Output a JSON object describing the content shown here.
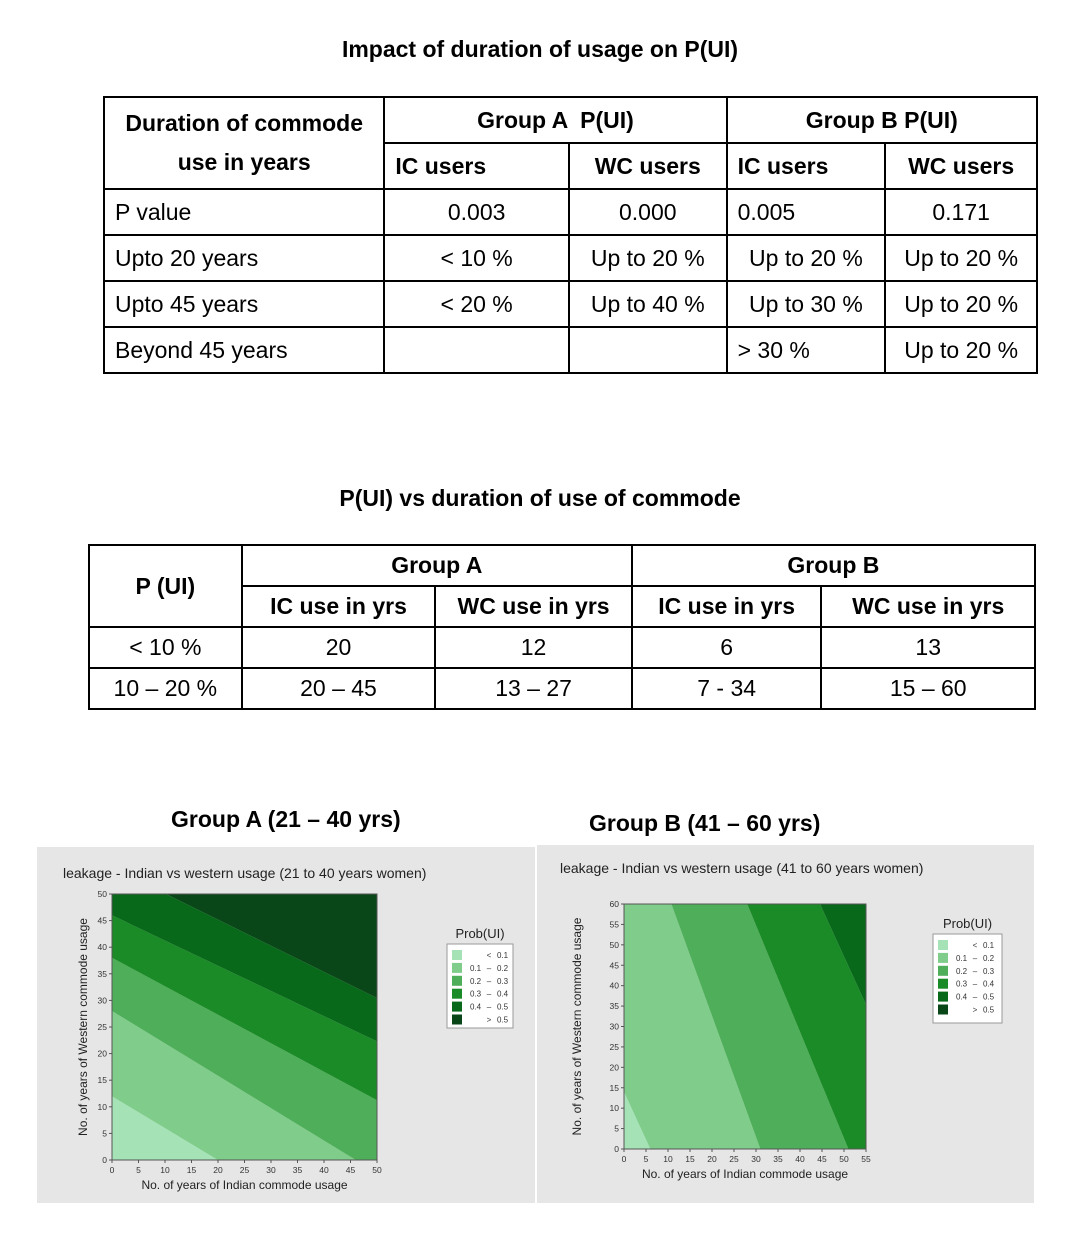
{
  "table1": {
    "title": "Impact of duration of usage on P(UI)",
    "corner_line1": "Duration of commode",
    "corner_line2": "use in years",
    "group_a": "Group A  P(UI)",
    "group_b": "Group B P(UI)",
    "sub_headers": [
      "IC users",
      "WC users",
      "IC users",
      "WC users"
    ],
    "rows": [
      {
        "label": "P value",
        "cells": [
          "0.003",
          "0.000",
          "0.005",
          "0.171"
        ]
      },
      {
        "label": "Upto 20 years",
        "cells": [
          "< 10 %",
          "Up to 20 %",
          "Up to 20 %",
          "Up to 20 %"
        ]
      },
      {
        "label": "Upto 45 years",
        "cells": [
          "< 20 %",
          "Up to 40 %",
          "Up to 30 %",
          "Up to 20 %"
        ]
      },
      {
        "label": "Beyond 45 years",
        "cells": [
          "",
          "",
          "> 30 %",
          "Up to 20 %"
        ]
      }
    ]
  },
  "table2": {
    "title": "P(UI)  vs  duration of use of commode",
    "corner": "P (UI)",
    "group_a": "Group A",
    "group_b": "Group B",
    "sub_headers": [
      "IC use in yrs",
      "WC use in yrs",
      "IC use in yrs",
      "WC use in yrs"
    ],
    "rows": [
      {
        "label": "< 10 %",
        "cells": [
          "20",
          "12",
          "6",
          "13"
        ]
      },
      {
        "label": "10 – 20 %",
        "cells": [
          "20 – 45",
          "13 – 27",
          "7 - 34",
          "15 – 60"
        ]
      }
    ]
  },
  "chart_a_caption": "Group A (21 – 40 yrs)",
  "chart_b_caption": "Group B (41 – 60 yrs)",
  "chart_data": [
    {
      "type": "contour",
      "title": "leakage -  Indian vs western usage (21 to 40 years women)",
      "xlabel": "No. of years of Indian commode usage",
      "ylabel": "No. of years of Western commode usage",
      "xlim": [
        0,
        50
      ],
      "ylim": [
        0,
        50
      ],
      "xticks": [
        "0",
        "5",
        "10",
        "15",
        "20",
        "25",
        "30",
        "35",
        "40",
        "45",
        "50"
      ],
      "yticks": [
        "0",
        "5",
        "10",
        "15",
        "20",
        "25",
        "30",
        "35",
        "40",
        "45",
        "50"
      ],
      "legend_title": "Prob(UI)",
      "legend": [
        {
          "from": "",
          "sep": "<",
          "to": "0.1",
          "color": "#a5e3b6"
        },
        {
          "from": "0.1",
          "sep": "–",
          "to": "0.2",
          "color": "#7fcc8b"
        },
        {
          "from": "0.2",
          "sep": "–",
          "to": "0.3",
          "color": "#4fae59"
        },
        {
          "from": "0.3",
          "sep": "–",
          "to": "0.4",
          "color": "#1b8b27"
        },
        {
          "from": "0.4",
          "sep": "–",
          "to": "0.5",
          "color": "#08691a"
        },
        {
          "from": "",
          "sep": ">",
          "to": "0.5",
          "color": "#094718"
        }
      ],
      "contours": [
        {
          "level": 0.1,
          "x_at_y0": 20,
          "y_at_x0": 12
        },
        {
          "level": 0.2,
          "x_at_y0": 46,
          "y_at_x0": 28
        },
        {
          "level": 0.3,
          "x_at_y0": 71,
          "y_at_x0": 38
        },
        {
          "level": 0.4,
          "x_at_y0": 97,
          "y_at_x0": 46
        },
        {
          "level": 0.5,
          "x_at_y0": 112,
          "y_at_x0": 55
        }
      ]
    },
    {
      "type": "contour",
      "title": "leakage -  Indian vs western usage (41 to 60 years women)",
      "xlabel": "No. of years of Indian commode usage",
      "ylabel": "No. of years of Western commode usage",
      "xlim": [
        0,
        55
      ],
      "ylim": [
        0,
        60
      ],
      "xticks": [
        "0",
        "5",
        "10",
        "15",
        "20",
        "25",
        "30",
        "35",
        "40",
        "45",
        "50",
        "55"
      ],
      "yticks": [
        "0",
        "5",
        "10",
        "15",
        "20",
        "25",
        "30",
        "35",
        "40",
        "45",
        "50",
        "55",
        "60"
      ],
      "legend_title": "Prob(UI)",
      "legend": [
        {
          "from": "",
          "sep": "<",
          "to": "0.1",
          "color": "#a5e3b6"
        },
        {
          "from": "0.1",
          "sep": "–",
          "to": "0.2",
          "color": "#7fcc8b"
        },
        {
          "from": "0.2",
          "sep": "–",
          "to": "0.3",
          "color": "#4fae59"
        },
        {
          "from": "0.3",
          "sep": "–",
          "to": "0.4",
          "color": "#1b8b27"
        },
        {
          "from": "0.4",
          "sep": "–",
          "to": "0.5",
          "color": "#08691a"
        },
        {
          "from": "",
          "sep": ">",
          "to": "0.5",
          "color": "#094718"
        }
      ],
      "contours": [
        {
          "level": 0.1,
          "x_at_y0": 6,
          "y_at_x0": 14
        },
        {
          "level": 0.2,
          "x_at_y0": 31,
          "y_at_x0": 92
        },
        {
          "level": 0.3,
          "x_at_y0": 51,
          "y_at_x0": 133
        },
        {
          "level": 0.4,
          "x_at_y0": 70,
          "y_at_x0": 165
        },
        {
          "level": 0.5,
          "x_at_y0": 100,
          "y_at_x0": 205
        }
      ]
    }
  ]
}
